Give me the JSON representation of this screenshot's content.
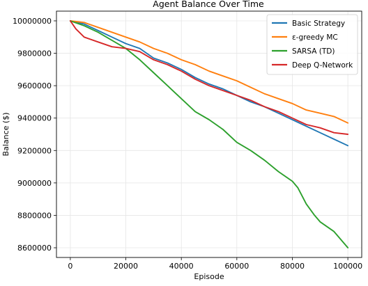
{
  "chart_data": {
    "type": "line",
    "title": "Agent Balance Over Time",
    "xlabel": "Episode",
    "ylabel": "Balance ($)",
    "xlim": [
      -5000,
      105000
    ],
    "ylim": [
      8540000,
      10060000
    ],
    "xticks": [
      0,
      20000,
      40000,
      60000,
      80000,
      100000
    ],
    "xtick_labels": [
      "0",
      "20000",
      "40000",
      "60000",
      "80000",
      "100000"
    ],
    "yticks": [
      8600000,
      8800000,
      9000000,
      9200000,
      9400000,
      9600000,
      9800000,
      10000000
    ],
    "ytick_labels": [
      "8600000",
      "8800000",
      "9000000",
      "9200000",
      "9400000",
      "9600000",
      "9800000",
      "10000000"
    ],
    "grid": true,
    "legend_position": "top-right",
    "series": [
      {
        "name": "Basic Strategy",
        "color": "#1f77b4",
        "x": [
          0,
          5000,
          10000,
          15000,
          20000,
          25000,
          30000,
          35000,
          40000,
          45000,
          50000,
          55000,
          60000,
          65000,
          70000,
          75000,
          80000,
          85000,
          90000,
          95000,
          100000
        ],
        "y": [
          10000000,
          9980000,
          9940000,
          9900000,
          9860000,
          9830000,
          9770000,
          9740000,
          9700000,
          9650000,
          9610000,
          9580000,
          9540000,
          9500000,
          9470000,
          9430000,
          9390000,
          9350000,
          9310000,
          9270000,
          9230000
        ]
      },
      {
        "name": "ε-greedy MC",
        "color": "#ff7f0e",
        "x": [
          0,
          5000,
          10000,
          15000,
          20000,
          25000,
          30000,
          35000,
          40000,
          45000,
          50000,
          55000,
          60000,
          65000,
          70000,
          75000,
          80000,
          85000,
          90000,
          95000,
          100000
        ],
        "y": [
          10000000,
          9990000,
          9960000,
          9930000,
          9900000,
          9870000,
          9830000,
          9800000,
          9760000,
          9730000,
          9690000,
          9660000,
          9630000,
          9590000,
          9550000,
          9520000,
          9490000,
          9450000,
          9430000,
          9410000,
          9370000
        ]
      },
      {
        "name": "SARSA (TD)",
        "color": "#2ca02c",
        "x": [
          0,
          5000,
          10000,
          15000,
          20000,
          25000,
          30000,
          35000,
          40000,
          45000,
          50000,
          55000,
          60000,
          65000,
          70000,
          75000,
          80000,
          82000,
          85000,
          88000,
          90000,
          95000,
          100000
        ],
        "y": [
          10000000,
          9970000,
          9930000,
          9880000,
          9830000,
          9760000,
          9680000,
          9600000,
          9520000,
          9440000,
          9390000,
          9330000,
          9250000,
          9200000,
          9140000,
          9070000,
          9010000,
          8970000,
          8870000,
          8800000,
          8760000,
          8700000,
          8600000
        ]
      },
      {
        "name": "Deep Q-Network",
        "color": "#d62728",
        "x": [
          0,
          2000,
          5000,
          10000,
          15000,
          20000,
          25000,
          30000,
          35000,
          40000,
          45000,
          50000,
          55000,
          60000,
          65000,
          70000,
          75000,
          80000,
          85000,
          90000,
          95000,
          100000
        ],
        "y": [
          10000000,
          9950000,
          9900000,
          9870000,
          9840000,
          9830000,
          9810000,
          9760000,
          9730000,
          9690000,
          9640000,
          9600000,
          9570000,
          9540000,
          9510000,
          9470000,
          9440000,
          9400000,
          9360000,
          9340000,
          9310000,
          9300000
        ]
      }
    ]
  }
}
